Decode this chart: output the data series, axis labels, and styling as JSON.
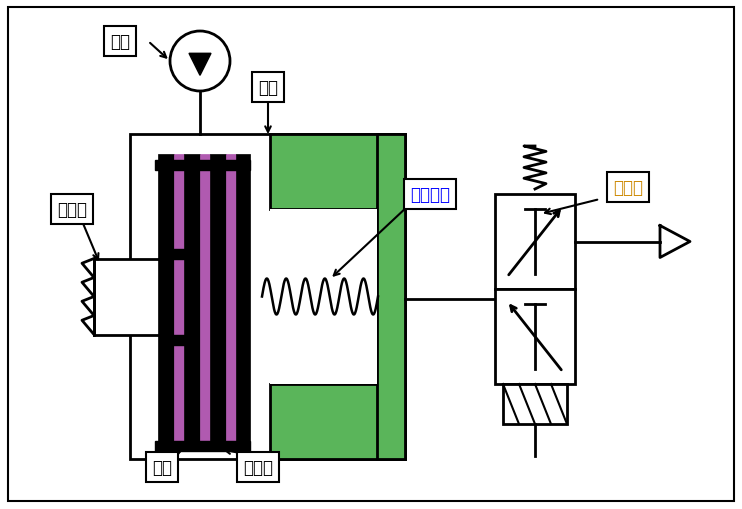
{
  "bg_color": "#ffffff",
  "black": "#000000",
  "green": "#5ab55a",
  "purple": "#b05ab0",
  "labels": {
    "oil_pump": "油泵",
    "piston": "活塞",
    "middle_shaft": "中间轴",
    "return_spring": "回位弹簧",
    "solenoid_valve": "电磁阀",
    "steel_plate": "钒片",
    "friction_plate": "摩擦片"
  },
  "fig_width": 7.42,
  "fig_height": 5.1
}
